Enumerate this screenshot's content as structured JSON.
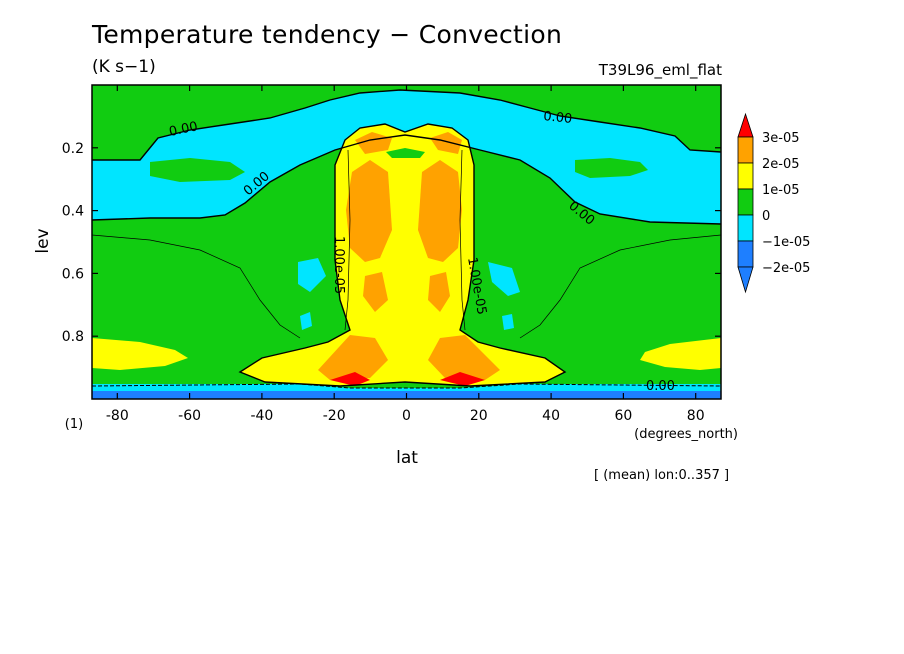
{
  "title": "Temperature tendency − Convection",
  "units": "(K s−1)",
  "run_label": "T39L96_eml_flat",
  "footnote": "[ (mean) lon:0..357 ]",
  "colors": {
    "level_minus2": "#1e7fff",
    "level_minus1": "#00e5ff",
    "level_0": "#11cc11",
    "level_1": "#ffff00",
    "level_2": "#ffa200",
    "level_3": "#ff0000"
  },
  "chart_data": {
    "type": "heatmap",
    "title": "Temperature tendency − Convection",
    "xlabel": "lat",
    "xunit": "(degrees_north)",
    "ylabel": "lev",
    "yunit": "(1)",
    "xlim": [
      -87,
      87
    ],
    "ylim": [
      1.0,
      0.0
    ],
    "x_ticks": [
      -80,
      -60,
      -40,
      -20,
      0,
      20,
      40,
      60,
      80
    ],
    "y_ticks": [
      0.2,
      0.4,
      0.6,
      0.8
    ],
    "colorbar": {
      "labels": [
        "3e-05",
        "2e-05",
        "1e-05",
        "0",
        "−1e-05",
        "−2e-05"
      ],
      "levels": [
        3e-05,
        2e-05,
        1e-05,
        0,
        -1e-05,
        -2e-05
      ]
    },
    "contour_labels": [
      "0.00",
      "0.00",
      "0.00",
      "0.00",
      "1.00e-05",
      "1.00e-05",
      "0.00"
    ]
  }
}
